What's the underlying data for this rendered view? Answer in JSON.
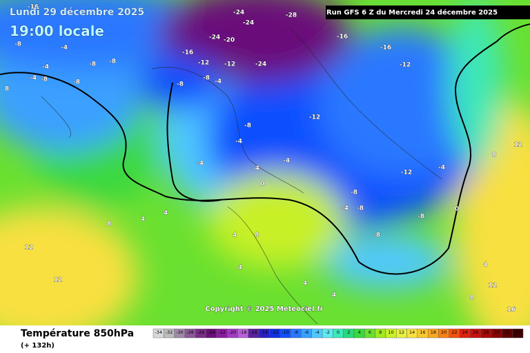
{
  "header": {
    "date": "Lundi 29 décembre 2025",
    "time": "19:00 locale",
    "run": "Run GFS 6 Z du Mercredi 24 décembre 2025"
  },
  "map": {
    "copyright": "Copyright © 2025 Meteociel.fr",
    "contour_labels": [
      -16,
      -24,
      -28,
      -24,
      -24,
      -20,
      -16,
      -16,
      -12,
      -24,
      -16,
      -12,
      -12,
      -8,
      -4,
      -8,
      -8,
      -4,
      -8,
      -8,
      -4,
      8,
      -8,
      -8,
      -4,
      -12,
      -8,
      -4,
      -4,
      -4,
      0,
      -4,
      -12,
      -4,
      -8,
      -8,
      -4,
      -8,
      -8,
      0,
      4,
      4,
      8,
      12,
      12,
      4,
      8,
      4,
      4,
      4,
      8,
      12,
      16,
      8,
      12,
      4
    ]
  },
  "legend": {
    "title": "Température 850hPa",
    "subtitle": "(+ 132h)",
    "scale": [
      -34,
      -32,
      -30,
      -28,
      -26,
      -24,
      -22,
      -20,
      -18,
      -16,
      -14,
      -12,
      -10,
      -8,
      -6,
      -4,
      -2,
      0,
      2,
      4,
      6,
      8,
      10,
      12,
      14,
      16,
      18,
      20,
      22,
      24,
      26,
      28,
      30,
      32,
      34
    ],
    "colors": [
      "#d8d8d8",
      "#bdbdbd",
      "#a08aa8",
      "#8c5a98",
      "#7a2c88",
      "#6a0f7a",
      "#8a1ca0",
      "#a03cc0",
      "#b860d8",
      "#5a20a0",
      "#2a20c0",
      "#1030e0",
      "#1050ff",
      "#2a78ff",
      "#3aa0ff",
      "#50c8ff",
      "#5ee8f0",
      "#3ce8b8",
      "#2ad880",
      "#3ad840",
      "#6ae030",
      "#a0e820",
      "#c8f028",
      "#e8f040",
      "#f8e040",
      "#f8c830",
      "#f8a820",
      "#f88018",
      "#f05010",
      "#e02010",
      "#c81010",
      "#a80808",
      "#880404",
      "#600000",
      "#400000"
    ]
  }
}
